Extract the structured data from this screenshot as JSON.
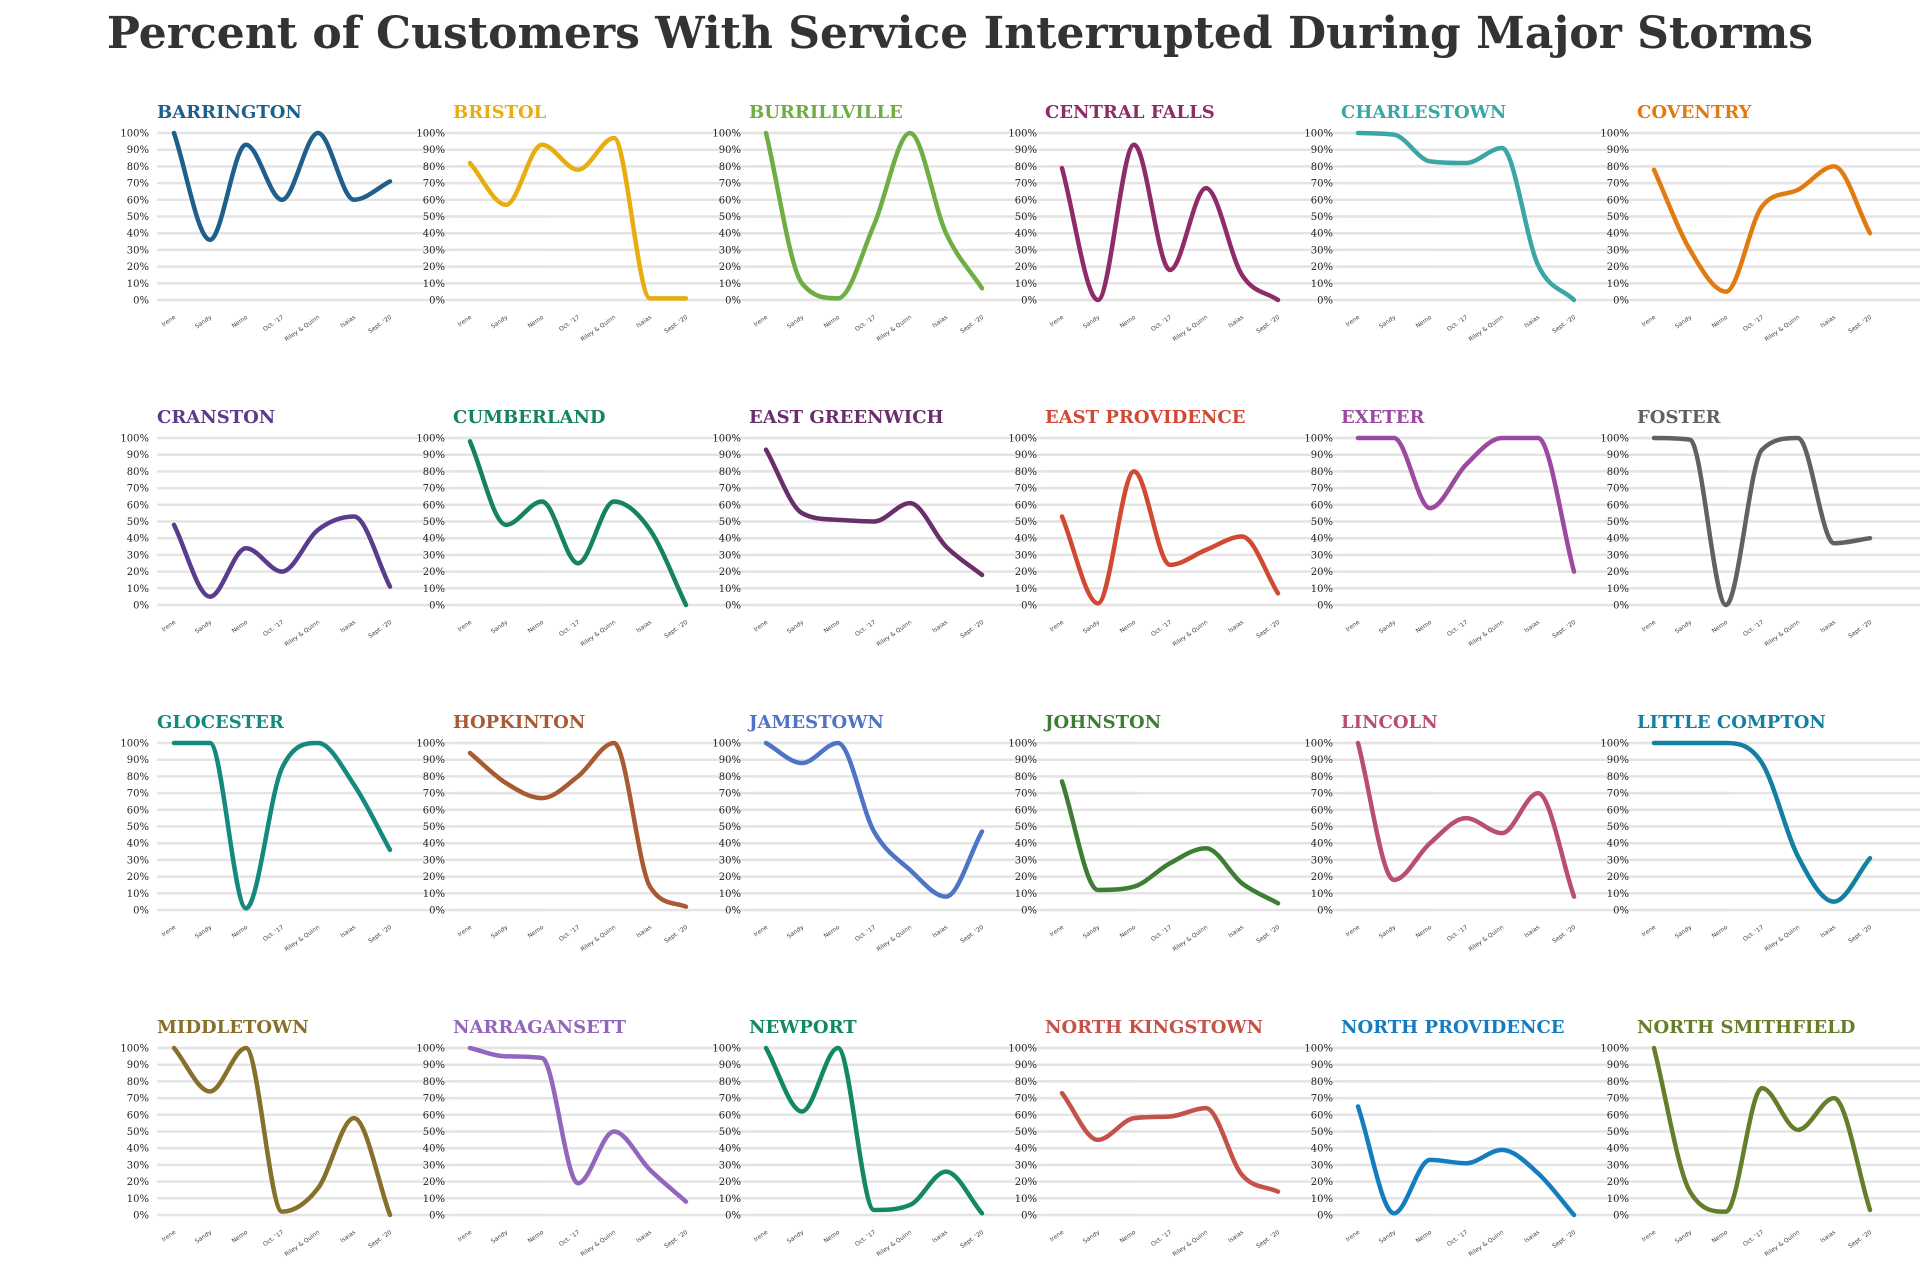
{
  "title": "Percent of Customers With Service Interrupted During Major Storms",
  "chart_data": {
    "type": "line",
    "x": [
      "Irene",
      "Sandy",
      "Nemo",
      "Oct. '17",
      "Riley & Quinn",
      "Isaias",
      "Sept. '20"
    ],
    "y_ticks": [
      "100%",
      "90%",
      "80%",
      "70%",
      "60%",
      "50%",
      "40%",
      "30%",
      "20%",
      "10%",
      "0%"
    ],
    "ylim": [
      0,
      100
    ],
    "grid": true,
    "small_multiples": [
      {
        "name": "BARRINGTON",
        "color": "#1f5f8b",
        "values": [
          100,
          36,
          93,
          60,
          100,
          60,
          71
        ]
      },
      {
        "name": "BRISTOL",
        "color": "#e8ad10",
        "values": [
          82,
          57,
          93,
          78,
          97,
          1,
          1
        ]
      },
      {
        "name": "BURRILLVILLE",
        "color": "#6fad45",
        "values": [
          100,
          10,
          1,
          45,
          100,
          40,
          7
        ]
      },
      {
        "name": "CENTRAL FALLS",
        "color": "#8e2b68",
        "values": [
          79,
          0,
          93,
          18,
          67,
          15,
          0
        ]
      },
      {
        "name": "CHARLESTOWN",
        "color": "#3aa6a6",
        "values": [
          100,
          99,
          83,
          82,
          91,
          21,
          0
        ]
      },
      {
        "name": "COVENTRY",
        "color": "#e07b12",
        "values": [
          78,
          30,
          5,
          56,
          66,
          80,
          40
        ]
      },
      {
        "name": "CRANSTON",
        "color": "#5b3b8c",
        "values": [
          48,
          5,
          34,
          20,
          45,
          53,
          11
        ]
      },
      {
        "name": "CUMBERLAND",
        "color": "#16845a",
        "values": [
          98,
          48,
          62,
          25,
          62,
          45,
          0
        ]
      },
      {
        "name": "EAST GREENWICH",
        "color": "#6a2f6b",
        "values": [
          93,
          55,
          51,
          50,
          61,
          35,
          18
        ]
      },
      {
        "name": "EAST PROVIDENCE",
        "color": "#d04a33",
        "values": [
          53,
          1,
          80,
          24,
          33,
          41,
          7
        ]
      },
      {
        "name": "EXETER",
        "color": "#9b4aa0",
        "values": [
          100,
          100,
          58,
          84,
          100,
          100,
          20
        ]
      },
      {
        "name": "FOSTER",
        "color": "#616161",
        "values": [
          100,
          99,
          0,
          93,
          100,
          37,
          40
        ]
      },
      {
        "name": "GLOCESTER",
        "color": "#14897e",
        "values": [
          100,
          100,
          1,
          85,
          100,
          75,
          36
        ]
      },
      {
        "name": "HOPKINTON",
        "color": "#a85a32",
        "values": [
          94,
          76,
          67,
          80,
          100,
          14,
          2
        ]
      },
      {
        "name": "JAMESTOWN",
        "color": "#4f74c6",
        "values": [
          100,
          88,
          100,
          47,
          24,
          8,
          47
        ]
      },
      {
        "name": "JOHNSTON",
        "color": "#3d7d34",
        "values": [
          77,
          12,
          14,
          28,
          37,
          16,
          4
        ]
      },
      {
        "name": "LINCOLN",
        "color": "#b84e74",
        "values": [
          100,
          18,
          40,
          55,
          46,
          70,
          8
        ]
      },
      {
        "name": "LITTLE COMPTON",
        "color": "#127fa3",
        "values": [
          100,
          100,
          100,
          88,
          32,
          5,
          31
        ]
      },
      {
        "name": "MIDDLETOWN",
        "color": "#86702a",
        "values": [
          100,
          74,
          100,
          2,
          16,
          58,
          0
        ]
      },
      {
        "name": "NARRAGANSETT",
        "color": "#9366bd",
        "values": [
          100,
          95,
          94,
          19,
          50,
          27,
          8
        ]
      },
      {
        "name": "NEWPORT",
        "color": "#128866",
        "values": [
          100,
          62,
          100,
          3,
          6,
          26,
          1
        ]
      },
      {
        "name": "NORTH KINGSTOWN",
        "color": "#c4524a",
        "values": [
          73,
          45,
          58,
          59,
          64,
          24,
          14
        ]
      },
      {
        "name": "NORTH PROVIDENCE",
        "color": "#157cc0",
        "values": [
          65,
          1,
          33,
          31,
          39,
          25,
          0
        ]
      },
      {
        "name": "NORTH SMITHFIELD",
        "color": "#667d2a",
        "values": [
          100,
          14,
          2,
          76,
          51,
          70,
          3
        ]
      }
    ]
  }
}
